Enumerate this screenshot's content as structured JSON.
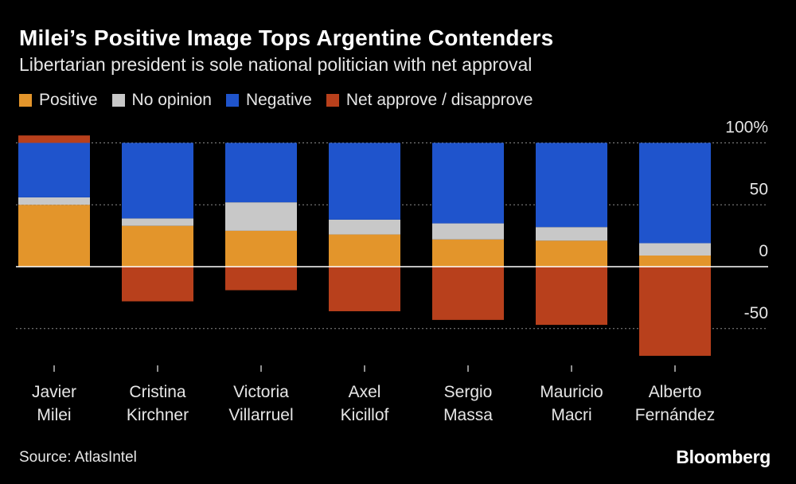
{
  "title": "Milei’s Positive Image Tops Argentine Contenders",
  "subtitle": "Libertarian president is sole national politician with net approval",
  "source": "Source: AtlasIntel",
  "logo": "Bloomberg",
  "colors": {
    "positive": "#e3952b",
    "no_opinion": "#c8c8c8",
    "negative": "#1f54cc",
    "net": "#b8401c",
    "grid": "#8a8a8a",
    "axis": "#ffffff",
    "text": "#e6e6e6"
  },
  "legend": [
    {
      "key": "positive",
      "label": "Positive"
    },
    {
      "key": "no_opinion",
      "label": "No opinion"
    },
    {
      "key": "negative",
      "label": "Negative"
    },
    {
      "key": "net",
      "label": "Net approve / disapprove"
    }
  ],
  "chart_data": {
    "type": "bar",
    "title": "Milei’s Positive Image Tops Argentine Contenders",
    "subtitle": "Libertarian president is sole national politician with net approval",
    "categories": [
      [
        "Javier",
        "Milei"
      ],
      [
        "Cristina",
        "Kirchner"
      ],
      [
        "Victoria",
        "Villarruel"
      ],
      [
        "Axel",
        "Kicillof"
      ],
      [
        "Sergio",
        "Massa"
      ],
      [
        "Mauricio",
        "Macri"
      ],
      [
        "Alberto",
        "Fernández"
      ]
    ],
    "series": [
      {
        "name": "Positive",
        "key": "positive",
        "values": [
          50,
          33,
          29,
          26,
          22,
          21,
          9
        ]
      },
      {
        "name": "No opinion",
        "key": "no_opinion",
        "values": [
          6,
          6,
          23,
          12,
          13,
          11,
          10
        ]
      },
      {
        "name": "Negative",
        "key": "negative",
        "values": [
          44,
          61,
          48,
          62,
          65,
          68,
          81
        ]
      },
      {
        "name": "Net approve / disapprove",
        "key": "net",
        "values": [
          6,
          -28,
          -19,
          -36,
          -43,
          -47,
          -72
        ]
      }
    ],
    "stacked": true,
    "ylim": [
      -72,
      106
    ],
    "yticks": [
      100,
      50,
      0,
      -50
    ],
    "ytick_labels": [
      "100%",
      "50",
      "0",
      "-50"
    ],
    "grid": true,
    "xlabel": "",
    "ylabel": ""
  }
}
